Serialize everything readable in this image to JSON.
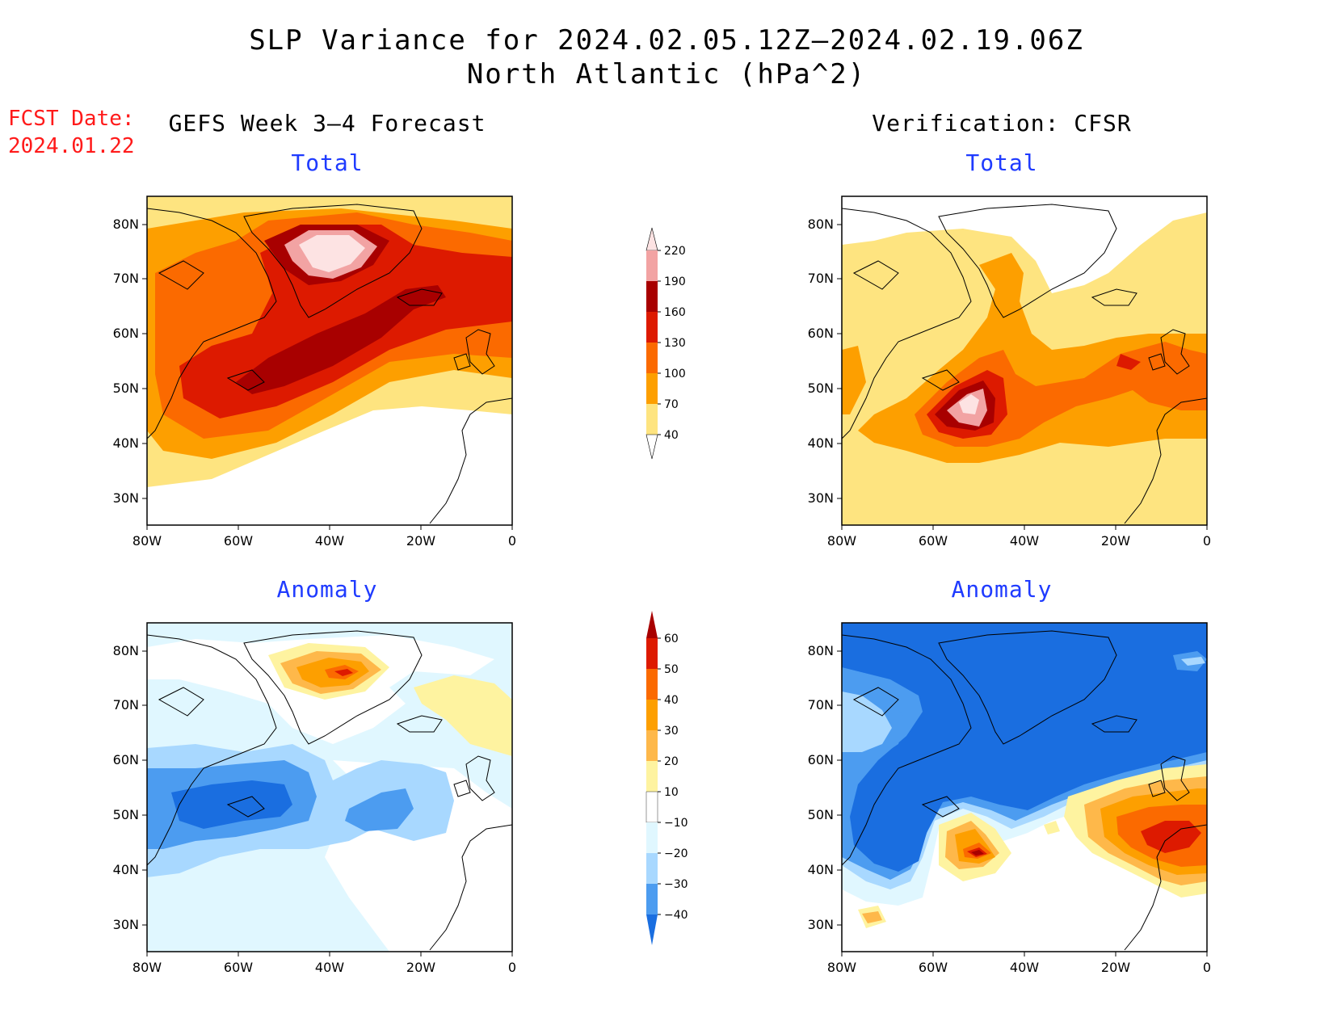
{
  "header": {
    "title": "SLP Variance for 2024.02.05.12Z–2024.02.19.06Z",
    "subtitle": "North Atlantic (hPa^2)",
    "fcst_label": "FCST Date:",
    "fcst_date": "2024.01.22"
  },
  "columns": {
    "left": "GEFS Week 3–4 Forecast",
    "right": "Verification: CFSR"
  },
  "panels": {
    "total": "Total",
    "anomaly": "Anomaly"
  },
  "axes": {
    "lat_labels": [
      "80N",
      "70N",
      "60N",
      "50N",
      "40N",
      "30N"
    ],
    "lon_labels": [
      "80W",
      "60W",
      "40W",
      "20W",
      "0"
    ]
  },
  "total_colorbar": {
    "levels": [
      "220",
      "190",
      "160",
      "130",
      "100",
      "70",
      "40"
    ],
    "colors": [
      "#fde3e3",
      "#f2a3a3",
      "#a80000",
      "#dd1a00",
      "#fb6a00",
      "#fd9f00",
      "#fee480"
    ]
  },
  "anomaly_colorbar": {
    "levels": [
      "60",
      "50",
      "40",
      "30",
      "20",
      "10",
      "−10",
      "−20",
      "−30",
      "−40"
    ],
    "colors": [
      "#a80000",
      "#dd1a00",
      "#fb6a00",
      "#fd9f00",
      "#feb84a",
      "#fef3a0",
      "#ffffff",
      "#e0f7ff",
      "#a8d8ff",
      "#4c9cf0",
      "#1a6ee0"
    ]
  },
  "map_colors": {
    "white": "#ffffff",
    "yellow": "#fee480",
    "orange_light": "#fd9f00",
    "orange": "#fb6a00",
    "red": "#dd1a00",
    "dark_red": "#a80000",
    "pink": "#f2a3a3",
    "light_pink": "#fde3e3",
    "blue_faint": "#e0f7ff",
    "blue_light": "#a8d8ff",
    "blue_mid": "#4c9cf0",
    "blue_dark": "#1a6ee0"
  }
}
